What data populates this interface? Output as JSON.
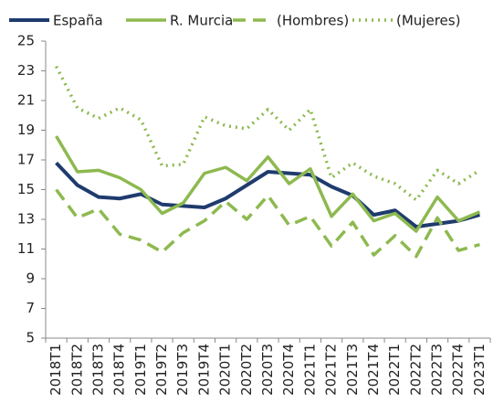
{
  "chart_data": {
    "type": "line",
    "categories": [
      "2018T1",
      "2018T2",
      "2018T3",
      "2018T4",
      "2019T1",
      "2019T2",
      "2019T3",
      "2019T4",
      "2020T1",
      "2020T2",
      "2020T3",
      "2020T4",
      "2021T1",
      "2021T2",
      "2021T3",
      "2021T4",
      "2022T1",
      "2022T2",
      "2022T3",
      "2022T4",
      "2023T1"
    ],
    "series": [
      {
        "name": "España",
        "color": "#1f3b6e",
        "style": "solid",
        "values": [
          16.8,
          15.3,
          14.5,
          14.4,
          14.7,
          14.0,
          13.9,
          13.8,
          14.4,
          15.3,
          16.2,
          16.1,
          16.0,
          15.2,
          14.6,
          13.3,
          13.6,
          12.5,
          12.7,
          12.9,
          13.3
        ]
      },
      {
        "name": "R. Murcia",
        "color": "#8db94f",
        "style": "solid",
        "values": [
          18.6,
          16.2,
          16.3,
          15.8,
          15.0,
          13.4,
          14.1,
          16.1,
          16.5,
          15.6,
          17.2,
          15.4,
          16.4,
          13.2,
          14.7,
          12.9,
          13.4,
          12.2,
          14.5,
          12.9,
          13.5
        ]
      },
      {
        "name": "(Hombres)",
        "color": "#8db94f",
        "style": "dashed",
        "values": [
          15.0,
          13.1,
          13.7,
          12.0,
          11.6,
          10.8,
          12.1,
          12.9,
          14.2,
          13.0,
          14.6,
          12.6,
          13.2,
          11.2,
          12.8,
          10.6,
          11.9,
          10.5,
          13.1,
          10.9,
          11.3
        ]
      },
      {
        "name": "(Mujeres)",
        "color": "#8db94f",
        "style": "dotted",
        "values": [
          23.3,
          20.5,
          19.8,
          20.5,
          19.7,
          16.6,
          16.7,
          19.9,
          19.3,
          19.1,
          20.4,
          19.0,
          20.4,
          15.8,
          16.8,
          15.9,
          15.4,
          14.3,
          16.3,
          15.4,
          16.3
        ]
      }
    ],
    "ylim": [
      5,
      25
    ],
    "yticks": [
      5,
      7,
      9,
      11,
      13,
      15,
      17,
      19,
      21,
      23,
      25
    ],
    "grid": false,
    "legend": "top"
  }
}
